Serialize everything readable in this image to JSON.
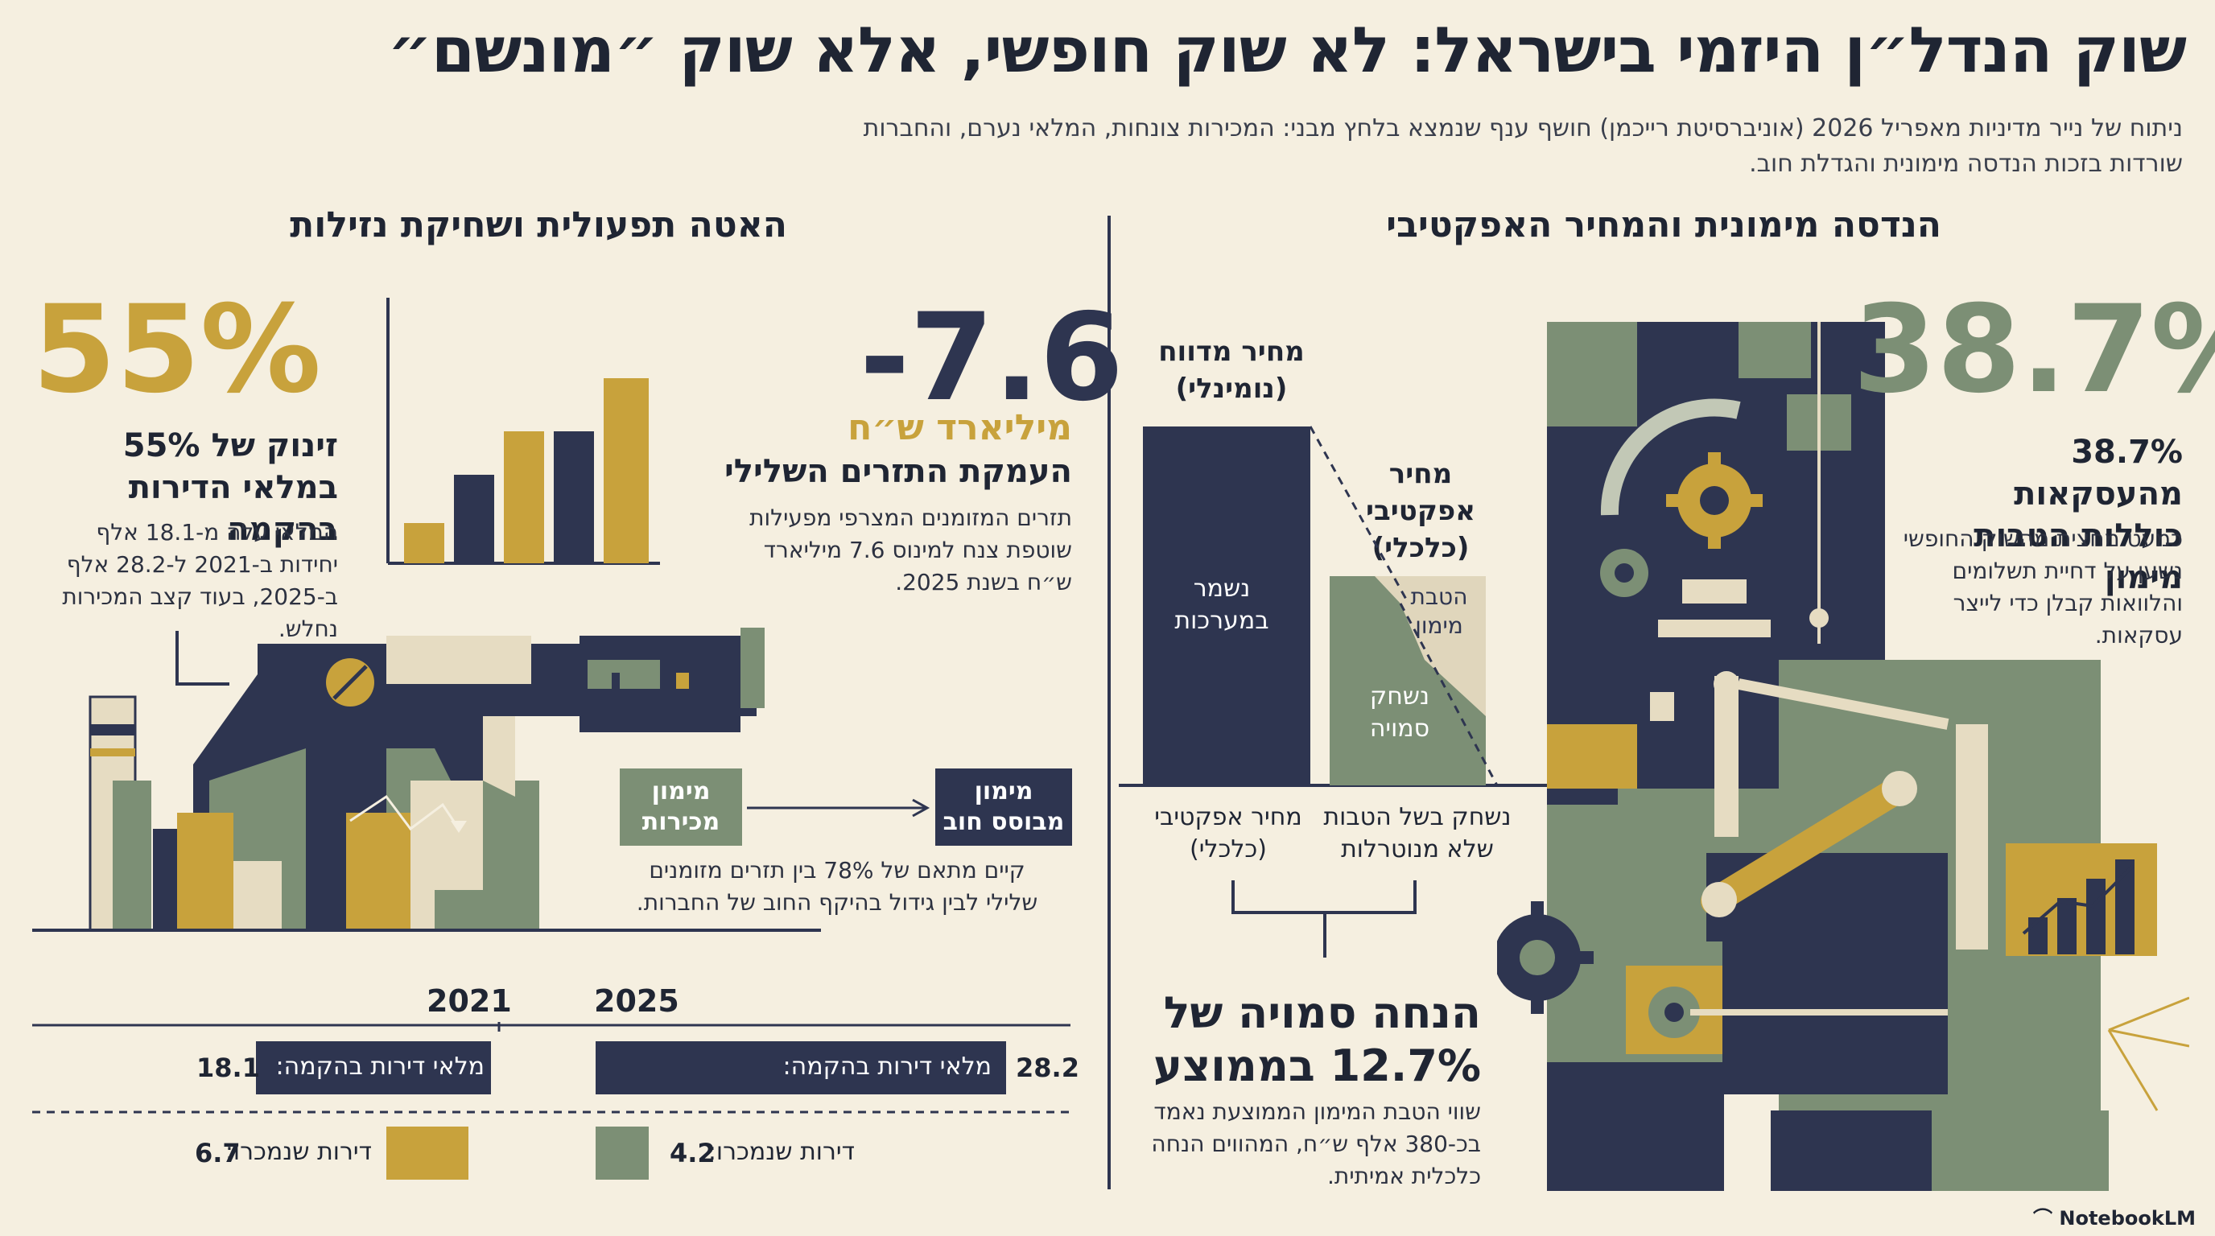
{
  "header": {
    "title": "שוק הנדל״ן היזמי בישראל: לא שוק חופשי, אלא שוק ״מונשם״",
    "subtitle": "ניתוח של נייר מדיניות מאפריל 2026 (אוניברסיטת רייכמן) חושף ענף שנמצא בלחץ מבני: המכירות צונחות, המלאי נערם, והחברות שורדות בזכות הנדסה מימונית והגדלת חוב."
  },
  "left": {
    "heading": "האטה תפעולית ושחיקת נזילות",
    "stat55": {
      "value": "55%",
      "label": "זינוק של 55% במלאי הדירות בהקמה",
      "note": "המלאי עלה מ-18.1 אלף יחידות ב-2021 ל-28.2 אלף ב-2025, בעוד קצב המכירות נחלש."
    },
    "stat76": {
      "value": "-7.6",
      "unit": "מיליארד ש״ח",
      "label": "העמקת התזרים השלילי",
      "note": "תזרים המזומנים המצרפי מפעילות שוטפת צנח למינוס 7.6 מיליארד ש״ח בשנת 2025."
    },
    "flow": {
      "from": "מימון מכירות",
      "to": "מימון מבוסס חוב",
      "note": "קיים מתאם של 78% בין תזרים מזומנים שלילי לבין גידול בהיקף החוב של החברות."
    },
    "comparison": {
      "year_a": "2021",
      "year_b": "2025",
      "inventory_label": "מלאי דירות בהקמה:",
      "sold_label": "דירות שנמכרו:",
      "inv_2021": "18.1",
      "inv_2025": "28.2",
      "sold_2021": "6.7",
      "sold_2025": "4.2"
    }
  },
  "right": {
    "heading": "הנדסה מימונית והמחיר האפקטיבי",
    "stat387": {
      "value": "38.7%",
      "label": "38.7% מהעסקאות כוללות הטבות מימון",
      "note": "כמעט מחצית מהשוק החופשי נשען על דחיית תשלומים והלוואות קבלן כדי לייצר עסקאות."
    },
    "price": {
      "reported": "מחיר מדווח (נומינלי)",
      "effective": "מחיר אפקטיבי (כלכלי)",
      "system_stays": "נשמר במערכות",
      "benefit": "הטבת מימון",
      "hidden_erosion": "נשחק סמויה",
      "caption_effective": "מחיר אפקטיבי (כלכלי)",
      "caption_erosion": "נשחק בשל הטבות שלא מנוטרלות"
    },
    "discount": {
      "label": "הנחה סמויה של 12.7% בממוצע",
      "note": "שווי הטבת המימון הממוצעת נאמד בכ-380 אלף ש״ח, המהווים הנחה כלכלית אמיתית."
    }
  },
  "branding": "NotebookLM"
}
